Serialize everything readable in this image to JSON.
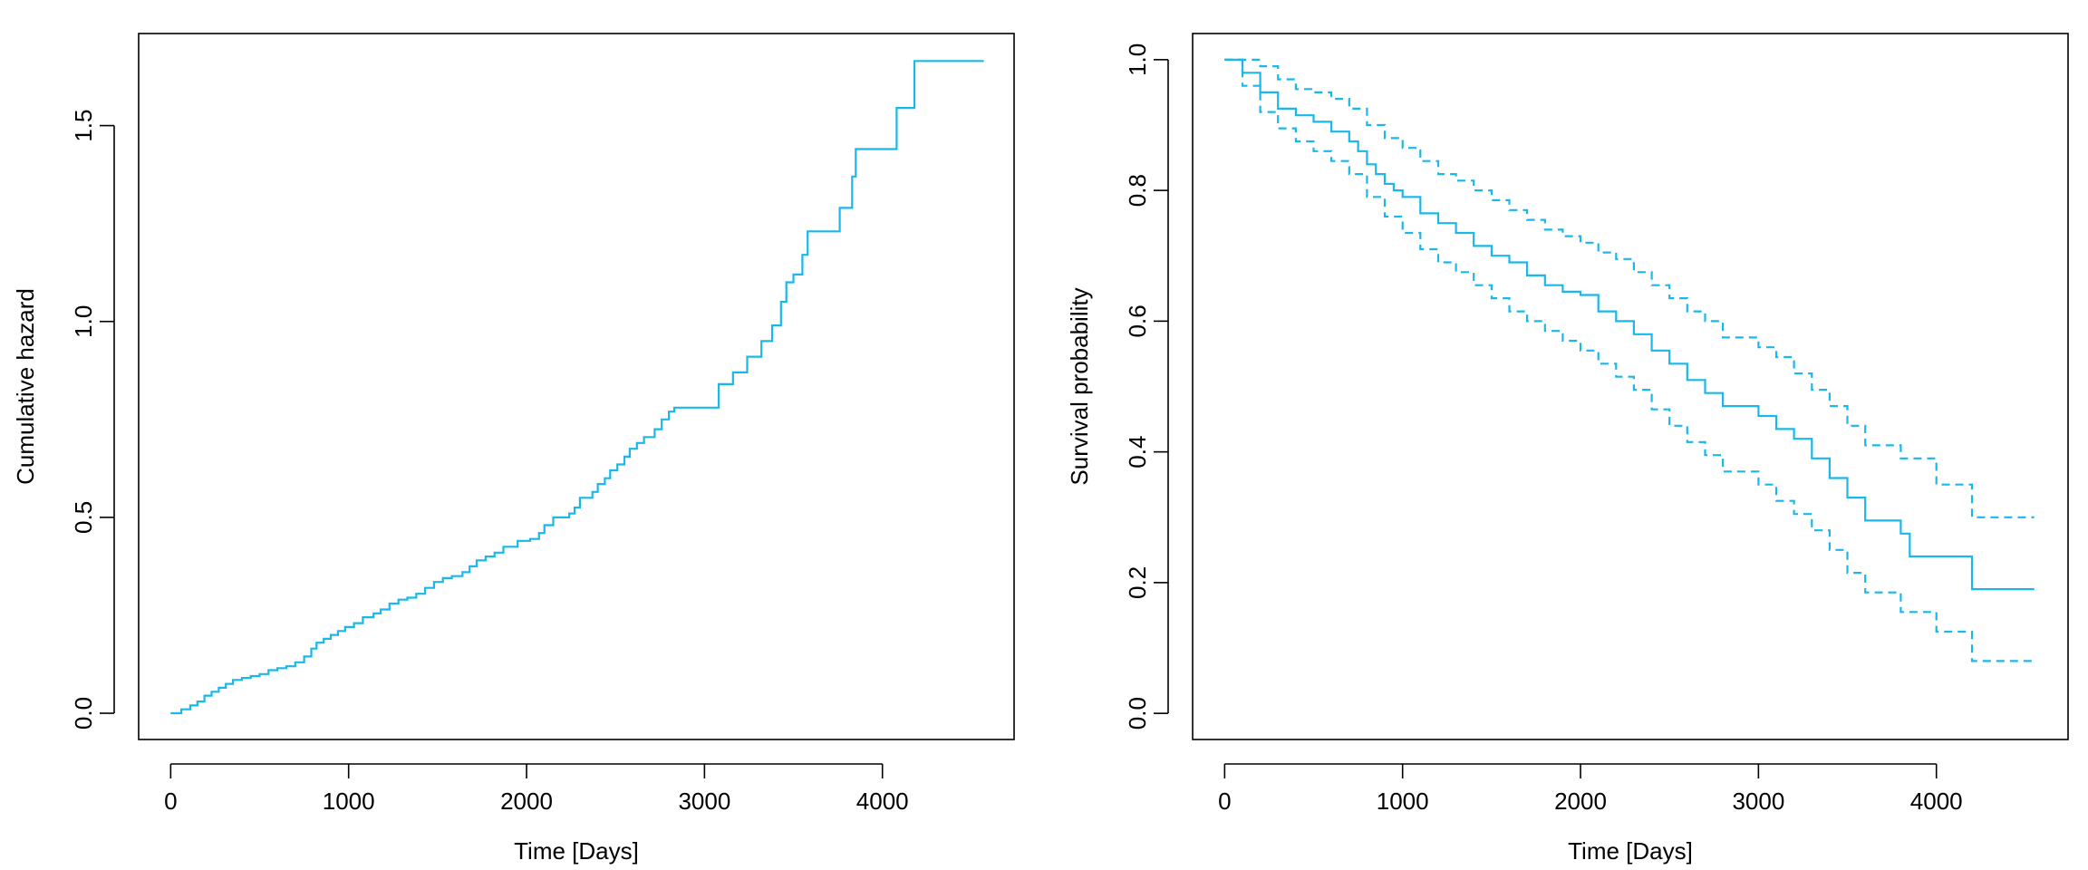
{
  "chart_data": [
    {
      "type": "line",
      "title": "",
      "xlabel": "Time [Days]",
      "ylabel": "Cumulative hazard",
      "xlim": [
        -180,
        4740
      ],
      "ylim": [
        -0.067,
        1.735
      ],
      "xticks": [
        0,
        1000,
        2000,
        3000,
        4000
      ],
      "xtick_labels": [
        "0",
        "1000",
        "2000",
        "3000",
        "4000"
      ],
      "yticks": [
        0,
        0.5,
        1,
        1.5
      ],
      "ytick_labels": [
        "0.0",
        "0.5",
        "1.0",
        "1.5"
      ],
      "grid": false,
      "line_color": "#1ab8ea",
      "series": [
        {
          "step": true,
          "style": "solid",
          "x": [
            0,
            60,
            110,
            150,
            190,
            230,
            270,
            310,
            350,
            400,
            450,
            500,
            550,
            600,
            650,
            700,
            750,
            790,
            820,
            860,
            900,
            940,
            980,
            1030,
            1080,
            1140,
            1180,
            1230,
            1280,
            1330,
            1380,
            1430,
            1480,
            1530,
            1580,
            1640,
            1680,
            1720,
            1770,
            1820,
            1870,
            1950,
            2020,
            2070,
            2100,
            2150,
            2200,
            2240,
            2270,
            2300,
            2370,
            2400,
            2440,
            2470,
            2510,
            2550,
            2580,
            2620,
            2660,
            2720,
            2760,
            2800,
            2830,
            3080,
            3160,
            3240,
            3320,
            3380,
            3430,
            3460,
            3500,
            3550,
            3580,
            3760,
            3830,
            3850,
            4080,
            4180,
            4570
          ],
          "y": [
            0,
            0.01,
            0.02,
            0.03,
            0.045,
            0.055,
            0.065,
            0.075,
            0.085,
            0.09,
            0.095,
            0.1,
            0.11,
            0.115,
            0.12,
            0.13,
            0.145,
            0.165,
            0.18,
            0.19,
            0.2,
            0.21,
            0.22,
            0.23,
            0.245,
            0.255,
            0.265,
            0.28,
            0.29,
            0.295,
            0.305,
            0.32,
            0.335,
            0.345,
            0.35,
            0.36,
            0.375,
            0.39,
            0.4,
            0.41,
            0.425,
            0.44,
            0.445,
            0.46,
            0.48,
            0.5,
            0.5,
            0.51,
            0.525,
            0.55,
            0.565,
            0.585,
            0.6,
            0.62,
            0.635,
            0.655,
            0.675,
            0.69,
            0.705,
            0.725,
            0.75,
            0.77,
            0.78,
            0.84,
            0.87,
            0.91,
            0.95,
            0.99,
            1.05,
            1.1,
            1.12,
            1.17,
            1.23,
            1.29,
            1.37,
            1.44,
            1.545,
            1.665,
            1.665
          ]
        }
      ]
    },
    {
      "type": "line",
      "title": "",
      "xlabel": "Time [Days]",
      "ylabel": "Survival probability",
      "xlim": [
        -180,
        4740
      ],
      "ylim": [
        -0.04,
        1.04
      ],
      "xticks": [
        0,
        1000,
        2000,
        3000,
        4000
      ],
      "xtick_labels": [
        "0",
        "1000",
        "2000",
        "3000",
        "4000"
      ],
      "yticks": [
        0,
        0.2,
        0.4,
        0.6,
        0.8,
        1
      ],
      "ytick_labels": [
        "0.0",
        "0.2",
        "0.4",
        "0.6",
        "0.8",
        "1.0"
      ],
      "grid": false,
      "line_color": "#1ab8ea",
      "series": [
        {
          "step": true,
          "style": "solid",
          "x": [
            0,
            100,
            200,
            300,
            400,
            500,
            600,
            700,
            750,
            800,
            850,
            900,
            950,
            1000,
            1100,
            1200,
            1300,
            1400,
            1500,
            1600,
            1700,
            1800,
            1900,
            2000,
            2100,
            2200,
            2300,
            2400,
            2500,
            2600,
            2700,
            2800,
            3000,
            3100,
            3200,
            3300,
            3400,
            3500,
            3600,
            3800,
            3850,
            4200,
            4550
          ],
          "y": [
            1,
            0.98,
            0.95,
            0.925,
            0.915,
            0.905,
            0.89,
            0.875,
            0.86,
            0.84,
            0.825,
            0.81,
            0.8,
            0.79,
            0.765,
            0.75,
            0.735,
            0.715,
            0.7,
            0.69,
            0.67,
            0.655,
            0.645,
            0.64,
            0.615,
            0.6,
            0.58,
            0.555,
            0.535,
            0.51,
            0.49,
            0.47,
            0.455,
            0.435,
            0.42,
            0.39,
            0.36,
            0.33,
            0.295,
            0.275,
            0.24,
            0.19,
            0.19
          ]
        },
        {
          "step": true,
          "style": "dashed",
          "x": [
            0,
            100,
            200,
            300,
            400,
            500,
            600,
            700,
            800,
            900,
            1000,
            1100,
            1200,
            1300,
            1400,
            1500,
            1600,
            1700,
            1800,
            1900,
            2000,
            2100,
            2200,
            2300,
            2400,
            2500,
            2600,
            2700,
            2800,
            3000,
            3100,
            3200,
            3300,
            3400,
            3500,
            3600,
            3800,
            4000,
            4200,
            4550
          ],
          "y": [
            1,
            1,
            0.99,
            0.97,
            0.955,
            0.95,
            0.94,
            0.925,
            0.9,
            0.88,
            0.865,
            0.845,
            0.825,
            0.815,
            0.8,
            0.785,
            0.77,
            0.755,
            0.74,
            0.73,
            0.72,
            0.705,
            0.695,
            0.675,
            0.655,
            0.635,
            0.615,
            0.6,
            0.575,
            0.56,
            0.545,
            0.52,
            0.495,
            0.47,
            0.44,
            0.41,
            0.39,
            0.35,
            0.3,
            0.3
          ]
        },
        {
          "step": true,
          "style": "dashed",
          "x": [
            0,
            100,
            200,
            300,
            400,
            500,
            600,
            700,
            800,
            900,
            1000,
            1100,
            1200,
            1300,
            1400,
            1500,
            1600,
            1700,
            1800,
            1900,
            2000,
            2100,
            2200,
            2300,
            2400,
            2500,
            2600,
            2700,
            2800,
            3000,
            3100,
            3200,
            3300,
            3400,
            3500,
            3600,
            3800,
            4000,
            4200,
            4550
          ],
          "y": [
            1,
            0.96,
            0.92,
            0.895,
            0.875,
            0.86,
            0.845,
            0.825,
            0.79,
            0.76,
            0.735,
            0.71,
            0.69,
            0.675,
            0.655,
            0.635,
            0.615,
            0.6,
            0.585,
            0.57,
            0.555,
            0.535,
            0.515,
            0.495,
            0.465,
            0.44,
            0.415,
            0.395,
            0.37,
            0.35,
            0.325,
            0.305,
            0.28,
            0.25,
            0.215,
            0.185,
            0.155,
            0.125,
            0.08,
            0.08
          ]
        }
      ]
    }
  ]
}
